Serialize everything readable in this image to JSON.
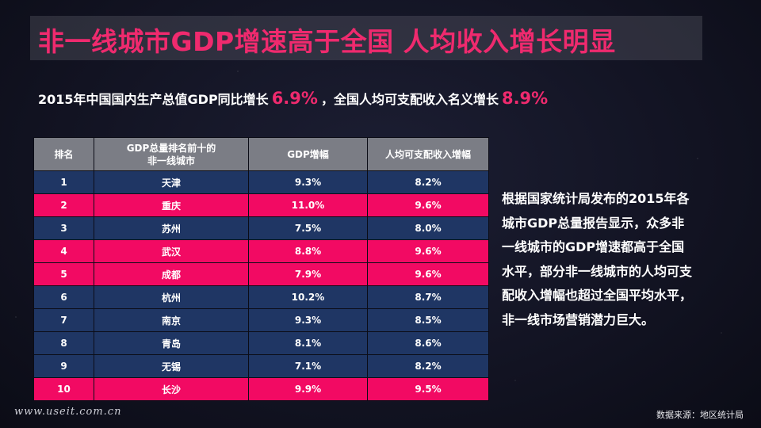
{
  "title": "非一线城市GDP增速高于全国 人均收入增长明显",
  "subtitle": {
    "part1": "2015年中国国内生产总值GDP同比增长",
    "gdp_growth": "6.9%",
    "part2": "，全国人均可支配收入名义增长",
    "income_growth": "8.9%"
  },
  "table": {
    "headers": [
      "排名",
      "GDP总量排名前十的\n非一线城市",
      "GDP增幅",
      "人均可支配收入增幅"
    ],
    "rows": [
      {
        "rank": "1",
        "city": "天津",
        "gdp": "9.3%",
        "income": "8.2%",
        "highlight": false
      },
      {
        "rank": "2",
        "city": "重庆",
        "gdp": "11.0%",
        "income": "9.6%",
        "highlight": true
      },
      {
        "rank": "3",
        "city": "苏州",
        "gdp": "7.5%",
        "income": "8.0%",
        "highlight": false
      },
      {
        "rank": "4",
        "city": "武汉",
        "gdp": "8.8%",
        "income": "9.6%",
        "highlight": true
      },
      {
        "rank": "5",
        "city": "成都",
        "gdp": "7.9%",
        "income": "9.6%",
        "highlight": true
      },
      {
        "rank": "6",
        "city": "杭州",
        "gdp": "10.2%",
        "income": "8.7%",
        "highlight": false
      },
      {
        "rank": "7",
        "city": "南京",
        "gdp": "9.3%",
        "income": "8.5%",
        "highlight": false
      },
      {
        "rank": "8",
        "city": "青岛",
        "gdp": "8.1%",
        "income": "8.6%",
        "highlight": false
      },
      {
        "rank": "9",
        "city": "无锡",
        "gdp": "7.1%",
        "income": "8.2%",
        "highlight": false
      },
      {
        "rank": "10",
        "city": "长沙",
        "gdp": "9.9%",
        "income": "9.5%",
        "highlight": true
      }
    ]
  },
  "side_text_lines": [
    "根据国家统计局发布的2015年各",
    "城市GDP总量报告显示，众多非",
    "一线城市的GDP增速都高于全国",
    "水平，部分非一线城市的人均可支",
    "配收入增幅也超过全国平均水平，",
    "非一线市场营销潜力巨大。"
  ],
  "watermark": "www.useit.com.cn",
  "source": "数据来源：地区统计局",
  "colors": {
    "accent": "#ef2a6e",
    "row_blue": "#1f3664",
    "row_pink": "#f20a63",
    "header_gray": "#7b7d85"
  }
}
